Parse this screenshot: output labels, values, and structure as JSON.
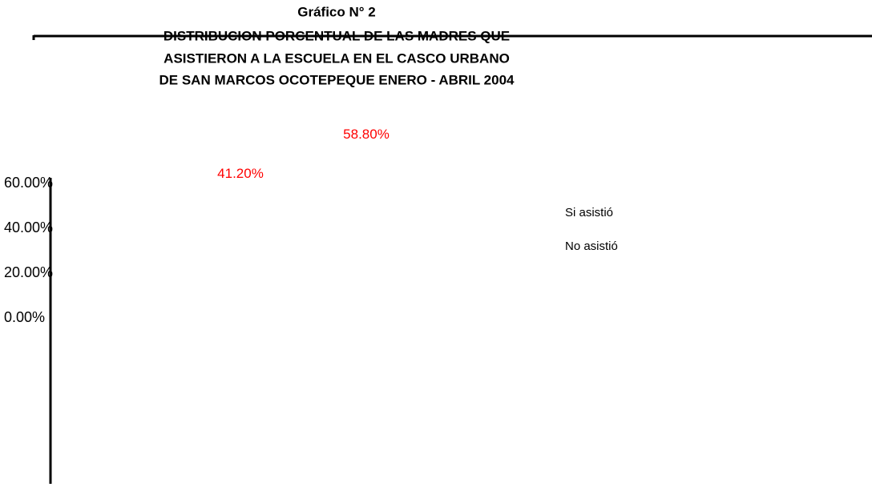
{
  "chart_data": {
    "type": "bar",
    "title": "Gráfico N° 2",
    "subtitle": [
      "DISTRIBUCION PORCENTUAL DE LAS MADRES QUE",
      "ASISTIERON A LA ESCUELA EN EL CASCO URBANO",
      "DE SAN MARCOS OCOTEPEQUE ENERO - ABRIL 2004"
    ],
    "categories": [
      null
    ],
    "series": [
      {
        "name": "Si asistió",
        "values": [
          41.2
        ],
        "value_labels": [
          "41.20%"
        ]
      },
      {
        "name": "No asistió",
        "values": [
          58.8
        ],
        "value_labels": [
          "58.80%"
        ]
      }
    ],
    "ylim": [
      0,
      60
    ],
    "yticks": [
      {
        "value": 0,
        "label": "0.00%"
      },
      {
        "value": 20,
        "label": "20.00%"
      },
      {
        "value": 40,
        "label": "40.00%"
      },
      {
        "value": 60,
        "label": "60.00%"
      }
    ]
  }
}
